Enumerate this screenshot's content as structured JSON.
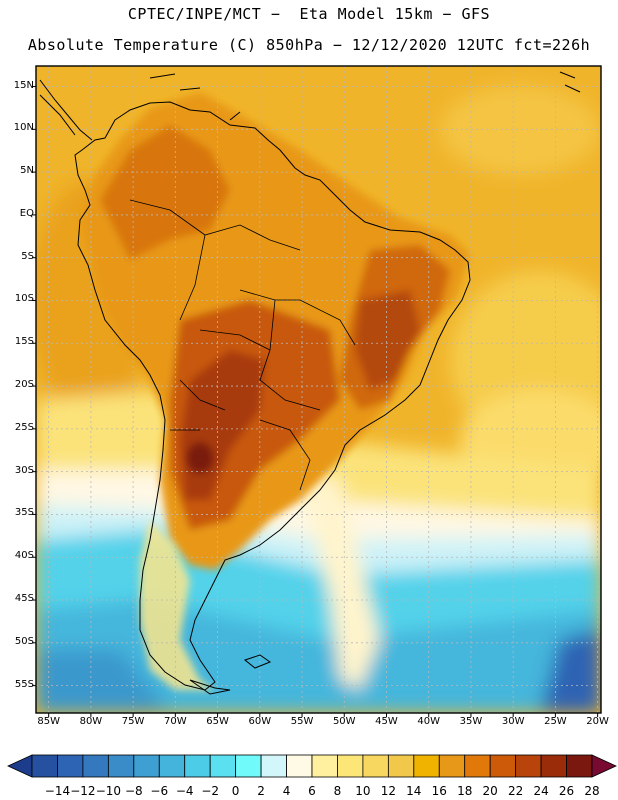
{
  "title_line1": "CPTEC/INPE/MCT −  Eta Model 15km − GFS",
  "title_line2": "Absolute Temperature (C) 850hPa − 12/12/2020 12UTC fct=226h",
  "lat_labels": [
    "15N",
    "10N",
    "5N",
    "EQ",
    "5S",
    "10S",
    "15S",
    "20S",
    "25S",
    "30S",
    "35S",
    "40S",
    "45S",
    "50S",
    "55S"
  ],
  "lon_labels": [
    "85W",
    "80W",
    "75W",
    "70W",
    "65W",
    "60W",
    "55W",
    "50W",
    "45W",
    "40W",
    "35W",
    "30W",
    "25W",
    "20W"
  ],
  "colorbar": {
    "labels": [
      "−14",
      "−12",
      "−10",
      "−8",
      "−6",
      "−4",
      "−2",
      "0",
      "2",
      "4",
      "6",
      "8",
      "10",
      "12",
      "14",
      "16",
      "18",
      "20",
      "22",
      "24",
      "26",
      "28"
    ],
    "colors": [
      "#1e3c8c",
      "#2650a0",
      "#2e64b4",
      "#3478be",
      "#3a8cc8",
      "#3ea0d2",
      "#44b4dc",
      "#4ccce6",
      "#5ae0f0",
      "#70fafa",
      "#d2f6fa",
      "#fffae6",
      "#fff0a0",
      "#fde678",
      "#f8d760",
      "#f2c84a",
      "#f0b400",
      "#e89818",
      "#e0780a",
      "#cc5a08",
      "#b8440c",
      "#9a2c0a",
      "#7a1810",
      "#780a32"
    ]
  },
  "colors": {
    "cold_ocean": "#3ec4dc",
    "warm_ocean": "#efb124",
    "land_hot": "#cc6418",
    "frame": "#000000"
  }
}
